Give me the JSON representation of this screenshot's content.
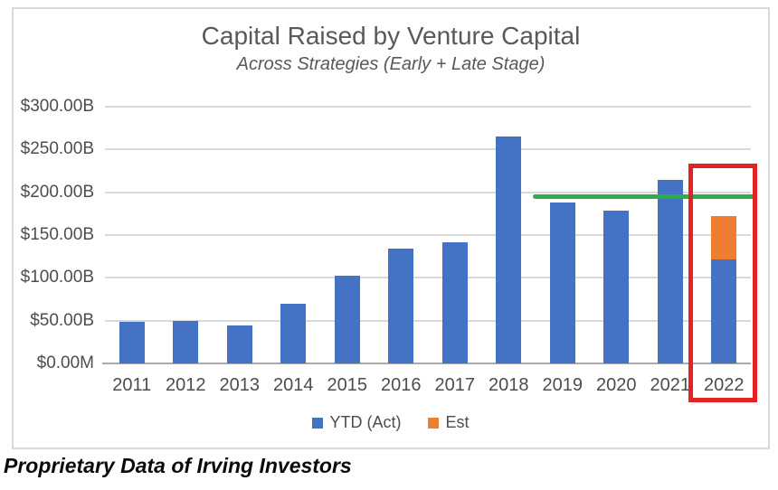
{
  "chart_data": {
    "type": "bar",
    "stacked": true,
    "title": "Capital Raised by Venture Capital",
    "subtitle": "Across Strategies (Early + Late Stage)",
    "categories": [
      "2011",
      "2012",
      "2013",
      "2014",
      "2015",
      "2016",
      "2017",
      "2018",
      "2019",
      "2020",
      "2021",
      "2022"
    ],
    "series": [
      {
        "name": "YTD (Act)",
        "color": "#4472C4",
        "values": [
          49,
          50,
          44,
          70,
          103,
          134,
          142,
          265,
          188,
          179,
          214,
          122
        ]
      },
      {
        "name": "Est",
        "color": "#ED7D31",
        "values": [
          0,
          0,
          0,
          0,
          0,
          0,
          0,
          0,
          0,
          0,
          0,
          50
        ]
      }
    ],
    "y_axis": {
      "min": 0,
      "max": 300,
      "unit": "USD billions",
      "tick_labels_top_to_bottom": [
        "$300.00B",
        "$250.00B",
        "$200.00B",
        "$150.00B",
        "$100.00B",
        "$50.00B",
        "$0.00M"
      ],
      "gridlines": "on"
    },
    "legend": {
      "position": "bottom",
      "items": [
        {
          "label": "YTD (Act)",
          "color": "#4472C4"
        },
        {
          "label": "Est",
          "color": "#ED7D31"
        }
      ]
    },
    "annotations": {
      "green_line": {
        "value": 195,
        "color": "#2EAD4D",
        "x_start_between": [
          "2018",
          "2019"
        ],
        "x_end": "right edge"
      },
      "red_box": {
        "highlights_category": "2022",
        "color": "#E32226"
      }
    }
  },
  "footer": {
    "text": "Proprietary Data of Irving Investors"
  }
}
